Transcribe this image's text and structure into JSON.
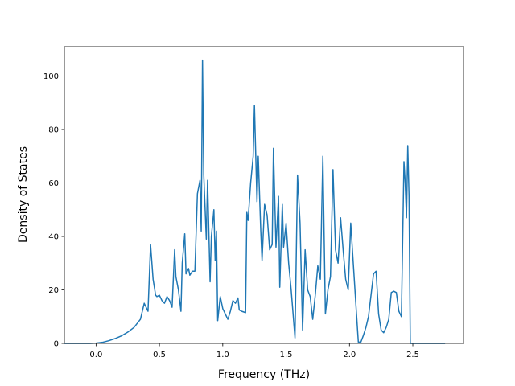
{
  "chart_data": {
    "type": "line",
    "title": "",
    "xlabel": "Frequency (THz)",
    "ylabel": "Density of States",
    "xlim": [
      -0.25,
      2.9
    ],
    "ylim": [
      0,
      111
    ],
    "xticks": [
      0.0,
      0.5,
      1.0,
      1.5,
      2.0,
      2.5
    ],
    "xtick_labels": [
      "0.0",
      "0.5",
      "1.0",
      "1.5",
      "2.0",
      "2.5"
    ],
    "yticks": [
      0,
      20,
      40,
      60,
      80,
      100
    ],
    "ytick_labels": [
      "0",
      "20",
      "40",
      "60",
      "80",
      "100"
    ],
    "grid": false,
    "line_color": "#1f77b4",
    "series": [
      {
        "x": [
          -0.25,
          -0.15,
          -0.05,
          0.0,
          0.05,
          0.1,
          0.15,
          0.2,
          0.25,
          0.3,
          0.35,
          0.38,
          0.41,
          0.43,
          0.45,
          0.47,
          0.48,
          0.5,
          0.52,
          0.54,
          0.56,
          0.58,
          0.6,
          0.62,
          0.63,
          0.65,
          0.67,
          0.68,
          0.7,
          0.71,
          0.73,
          0.74,
          0.76,
          0.78,
          0.8,
          0.82,
          0.83,
          0.84,
          0.85,
          0.87,
          0.88,
          0.9,
          0.91,
          0.93,
          0.94,
          0.95,
          0.96,
          0.98,
          1.0,
          1.02,
          1.04,
          1.06,
          1.08,
          1.1,
          1.12,
          1.13,
          1.15,
          1.18,
          1.19,
          1.2,
          1.22,
          1.24,
          1.25,
          1.27,
          1.28,
          1.3,
          1.31,
          1.33,
          1.35,
          1.37,
          1.38,
          1.39,
          1.4,
          1.42,
          1.44,
          1.45,
          1.47,
          1.48,
          1.5,
          1.52,
          1.54,
          1.55,
          1.57,
          1.59,
          1.61,
          1.63,
          1.65,
          1.67,
          1.69,
          1.71,
          1.73,
          1.75,
          1.77,
          1.79,
          1.81,
          1.83,
          1.85,
          1.87,
          1.89,
          1.91,
          1.93,
          1.95,
          1.97,
          1.99,
          2.01,
          2.03,
          2.05,
          2.07,
          2.09,
          2.11,
          2.13,
          2.15,
          2.17,
          2.19,
          2.21,
          2.23,
          2.25,
          2.27,
          2.29,
          2.31,
          2.33,
          2.35,
          2.37,
          2.39,
          2.41,
          2.43,
          2.44,
          2.45,
          2.46,
          2.47,
          2.48,
          2.5,
          2.52,
          2.6,
          2.75
        ],
        "y": [
          0,
          0,
          0,
          0.1,
          0.4,
          1.0,
          1.8,
          2.8,
          4.2,
          6.0,
          9.0,
          15.0,
          12.0,
          37.0,
          24.0,
          18.0,
          17.5,
          18.0,
          16.0,
          15.0,
          17.5,
          16.0,
          13.5,
          35.0,
          25.0,
          20.0,
          12.0,
          30.0,
          41.0,
          26.0,
          28.0,
          25.5,
          27.0,
          27.0,
          56.0,
          61.0,
          42.0,
          106.0,
          63.0,
          39.0,
          61.0,
          23.0,
          40.0,
          50.0,
          31.0,
          42.0,
          8.5,
          17.5,
          13.0,
          11.0,
          9.0,
          12.0,
          16.0,
          15.0,
          17.0,
          12.5,
          12.0,
          11.5,
          49.0,
          46.0,
          60.0,
          70.0,
          89.0,
          53.0,
          70.0,
          42.0,
          31.0,
          52.0,
          48.0,
          35.0,
          36.0,
          37.0,
          73.0,
          36.0,
          55.0,
          21.0,
          52.0,
          36.0,
          45.0,
          30.0,
          20.0,
          14.0,
          2.0,
          63.0,
          45.0,
          5.0,
          35.0,
          20.0,
          17.5,
          9.0,
          18.0,
          29.0,
          24.0,
          70.0,
          11.0,
          20.0,
          25.0,
          65.0,
          35.0,
          30.0,
          47.0,
          35.0,
          24.0,
          20.0,
          45.0,
          30.0,
          15.0,
          0.5,
          0.5,
          3.0,
          6.0,
          10.0,
          18.0,
          26.0,
          27.0,
          11.0,
          5.0,
          4.0,
          6.0,
          9.0,
          19.0,
          19.5,
          19.0,
          12.0,
          10.0,
          68.0,
          60.0,
          47.0,
          74.0,
          55.0,
          0,
          0,
          0,
          0,
          0
        ]
      }
    ]
  }
}
